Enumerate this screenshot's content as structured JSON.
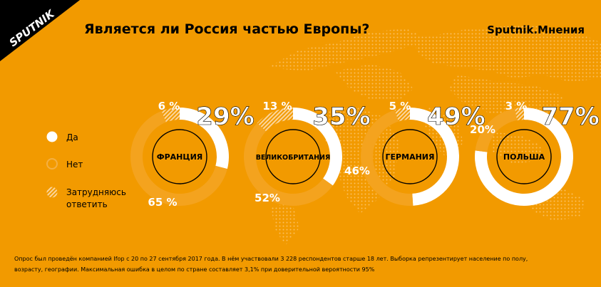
{
  "brand": {
    "logo_text": "SPUTNIK",
    "section": "Sputnik.Мнения"
  },
  "title": "Является ли Россия частью Европы?",
  "legend": [
    {
      "key": "yes",
      "label": "Да"
    },
    {
      "key": "no",
      "label": "Нет"
    },
    {
      "key": "unsure",
      "label_lines": [
        "Затрудняюсь",
        "ответить"
      ]
    }
  ],
  "footnote": [
    "Опрос был проведён компанией Ifop с 20 по 27 сентября 2017 года. В нём участвовали 3 228 респондентов старше 18 лет. Выборка репрезентирует население по полу,",
    "возрасту, географии. Максимальная ошибка в целом по стране составляет 3,1% при доверительной вероятности 95%"
  ],
  "colors": {
    "background": "#f29a00",
    "white": "#ffffff",
    "ring_no": "#f4a31e",
    "hatch": "#fbd59c"
  },
  "chart_data": {
    "type": "pie",
    "categories": [
      "Да",
      "Нет",
      "Затрудняюсь ответить"
    ],
    "series": [
      {
        "name": "ФРАНЦИЯ",
        "values": [
          29,
          65,
          6
        ],
        "labels": [
          "29%",
          "65 %",
          "6 %"
        ]
      },
      {
        "name": "ВЕЛИКОБРИТАНИЯ",
        "values": [
          35,
          52,
          13
        ],
        "labels": [
          "35%",
          "52%",
          "13 %"
        ]
      },
      {
        "name": "ГЕРМАНИЯ",
        "values": [
          49,
          46,
          5
        ],
        "labels": [
          "49%",
          "46%",
          "5 %"
        ]
      },
      {
        "name": "ПОЛЬША",
        "values": [
          77,
          20,
          3
        ],
        "labels": [
          "77%",
          "20%",
          "3 %"
        ]
      }
    ]
  }
}
